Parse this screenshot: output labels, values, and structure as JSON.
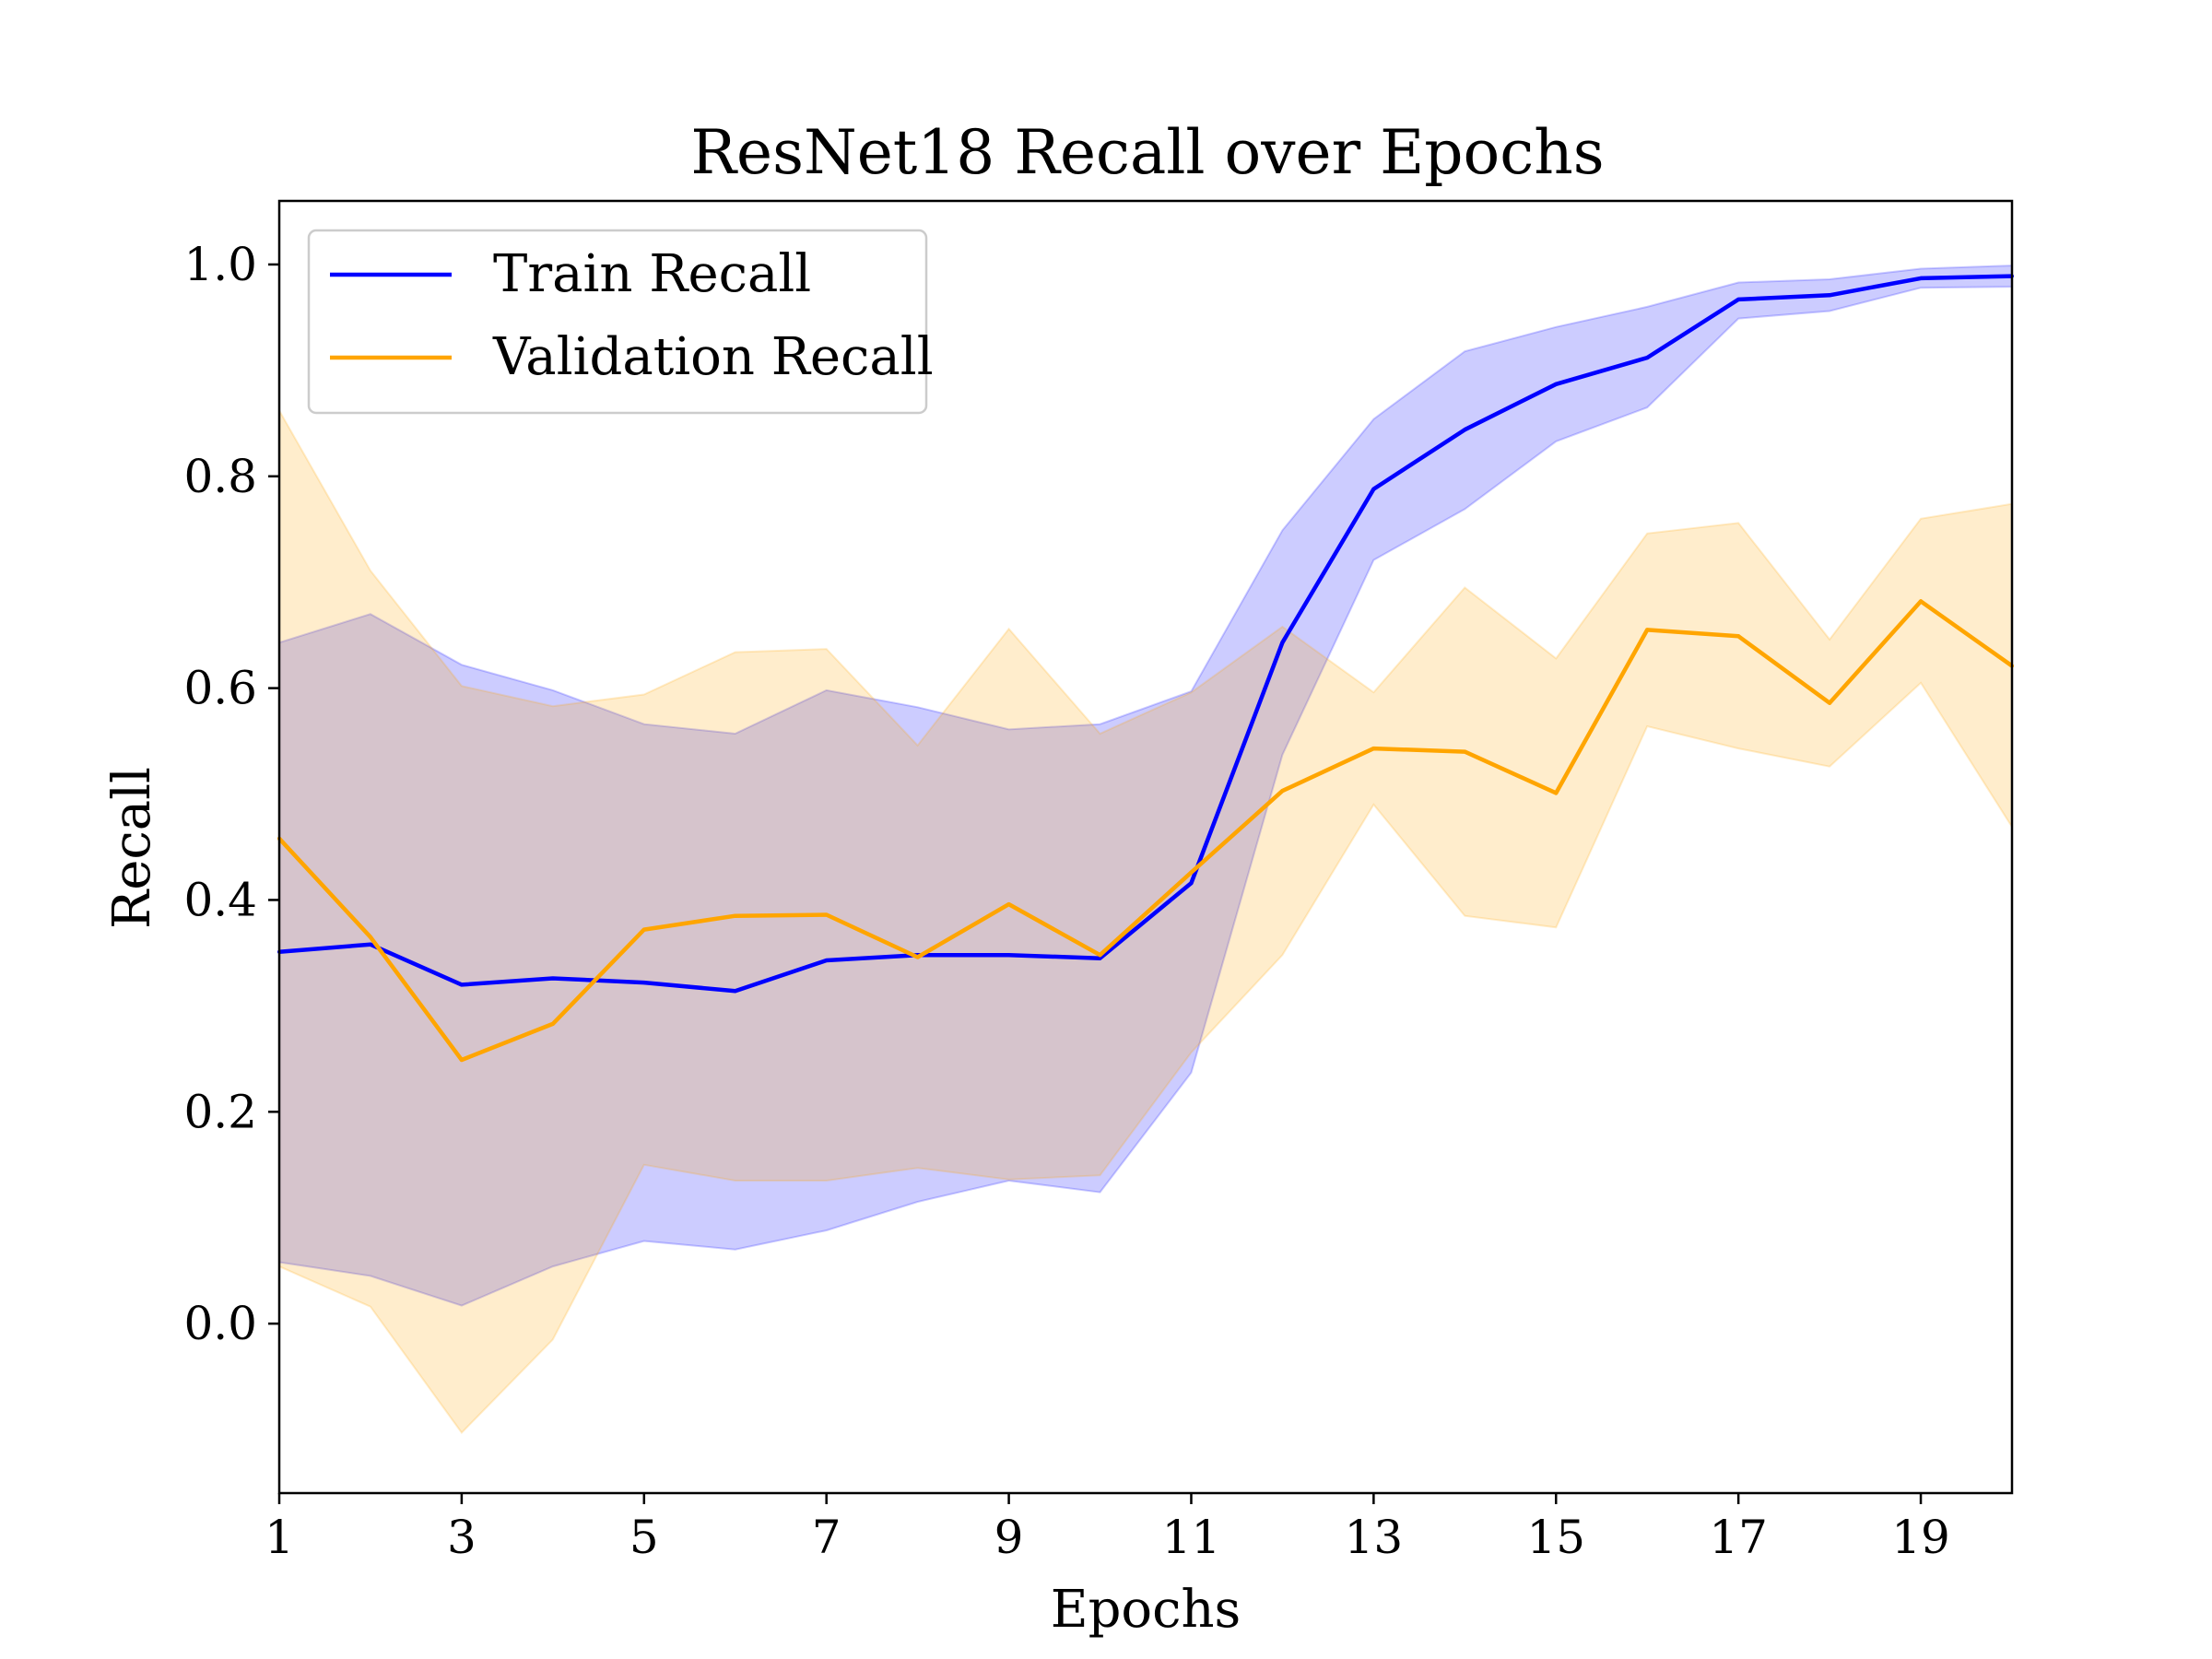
{
  "chart_data": {
    "type": "line",
    "title": "ResNet18 Recall over Epochs",
    "xlabel": "Epochs",
    "ylabel": "Recall",
    "xlim": [
      1,
      20
    ],
    "ylim": [
      -0.16,
      1.06
    ],
    "xticks": [
      1,
      3,
      5,
      7,
      9,
      11,
      13,
      15,
      17,
      19
    ],
    "xtick_labels": [
      "1",
      "3",
      "5",
      "7",
      "9",
      "11",
      "13",
      "15",
      "17",
      "19"
    ],
    "yticks": [
      0.0,
      0.2,
      0.4,
      0.6,
      0.8,
      1.0
    ],
    "ytick_labels": [
      "0.0",
      "0.2",
      "0.4",
      "0.6",
      "0.8",
      "1.0"
    ],
    "grid": false,
    "legend_position": "top-left",
    "x": [
      1,
      2,
      3,
      4,
      5,
      6,
      7,
      8,
      9,
      10,
      11,
      12,
      13,
      14,
      15,
      16,
      17,
      18,
      19,
      20
    ],
    "series": [
      {
        "name": "Train Recall",
        "color": "#0000ff",
        "values": [
          0.351,
          0.358,
          0.32,
          0.326,
          0.322,
          0.314,
          0.343,
          0.348,
          0.348,
          0.345,
          0.416,
          0.643,
          0.788,
          0.844,
          0.887,
          0.912,
          0.967,
          0.971,
          0.987,
          0.989
        ],
        "band_upper": [
          0.643,
          0.67,
          0.622,
          0.598,
          0.566,
          0.557,
          0.598,
          0.582,
          0.561,
          0.566,
          0.597,
          0.749,
          0.854,
          0.918,
          0.941,
          0.96,
          0.983,
          0.986,
          0.996,
          0.999
        ],
        "band_lower": [
          0.058,
          0.045,
          0.017,
          0.054,
          0.078,
          0.07,
          0.088,
          0.115,
          0.135,
          0.124,
          0.237,
          0.537,
          0.721,
          0.769,
          0.833,
          0.865,
          0.949,
          0.956,
          0.978,
          0.979
        ]
      },
      {
        "name": "Validation Recall",
        "color": "#ffa500",
        "values": [
          0.458,
          0.365,
          0.249,
          0.283,
          0.372,
          0.385,
          0.386,
          0.346,
          0.396,
          0.348,
          0.426,
          0.503,
          0.543,
          0.54,
          0.501,
          0.655,
          0.649,
          0.586,
          0.682,
          0.621
        ],
        "band_upper": [
          0.862,
          0.711,
          0.602,
          0.583,
          0.594,
          0.634,
          0.637,
          0.546,
          0.656,
          0.557,
          0.596,
          0.658,
          0.596,
          0.695,
          0.628,
          0.746,
          0.756,
          0.646,
          0.76,
          0.774
        ],
        "band_lower": [
          0.054,
          0.016,
          -0.103,
          -0.015,
          0.15,
          0.135,
          0.135,
          0.147,
          0.136,
          0.14,
          0.256,
          0.348,
          0.49,
          0.385,
          0.374,
          0.564,
          0.543,
          0.526,
          0.605,
          0.469
        ]
      }
    ]
  }
}
